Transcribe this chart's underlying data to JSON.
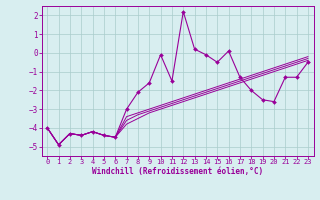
{
  "x": [
    0,
    1,
    2,
    3,
    4,
    5,
    6,
    7,
    8,
    9,
    10,
    11,
    12,
    13,
    14,
    15,
    16,
    17,
    18,
    19,
    20,
    21,
    22,
    23
  ],
  "y_main": [
    -4.0,
    -4.9,
    -4.3,
    -4.4,
    -4.2,
    -4.4,
    -4.5,
    -3.0,
    -2.1,
    -1.6,
    -0.1,
    -1.5,
    2.2,
    0.2,
    -0.1,
    -0.5,
    0.1,
    -1.3,
    -2.0,
    -2.5,
    -2.6,
    -1.3,
    -1.3,
    -0.5
  ],
  "y_line1": [
    -4.0,
    -4.9,
    -4.3,
    -4.4,
    -4.2,
    -4.4,
    -4.5,
    -3.4,
    -3.2,
    -3.0,
    -2.8,
    -2.6,
    -2.4,
    -2.2,
    -2.0,
    -1.8,
    -1.6,
    -1.4,
    -1.2,
    -1.0,
    -0.8,
    -0.6,
    -0.4,
    -0.2
  ],
  "y_line2": [
    -4.0,
    -4.9,
    -4.3,
    -4.4,
    -4.2,
    -4.4,
    -4.5,
    -3.6,
    -3.3,
    -3.1,
    -2.9,
    -2.7,
    -2.5,
    -2.3,
    -2.1,
    -1.9,
    -1.7,
    -1.5,
    -1.3,
    -1.1,
    -0.9,
    -0.7,
    -0.5,
    -0.3
  ],
  "y_line3": [
    -4.0,
    -4.9,
    -4.3,
    -4.4,
    -4.2,
    -4.4,
    -4.5,
    -3.8,
    -3.5,
    -3.2,
    -3.0,
    -2.8,
    -2.6,
    -2.4,
    -2.2,
    -2.0,
    -1.8,
    -1.6,
    -1.4,
    -1.2,
    -1.0,
    -0.8,
    -0.6,
    -0.4
  ],
  "bg_color": "#d8eef0",
  "line_color": "#990099",
  "grid_color": "#aacccc",
  "xlabel": "Windchill (Refroidissement éolien,°C)",
  "ylim": [
    -5.5,
    2.5
  ],
  "xlim": [
    -0.5,
    23.5
  ],
  "yticks": [
    -5,
    -4,
    -3,
    -2,
    -1,
    0,
    1,
    2
  ],
  "xticks": [
    0,
    1,
    2,
    3,
    4,
    5,
    6,
    7,
    8,
    9,
    10,
    11,
    12,
    13,
    14,
    15,
    16,
    17,
    18,
    19,
    20,
    21,
    22,
    23
  ],
  "tick_fontsize": 5.0,
  "xlabel_fontsize": 5.5
}
